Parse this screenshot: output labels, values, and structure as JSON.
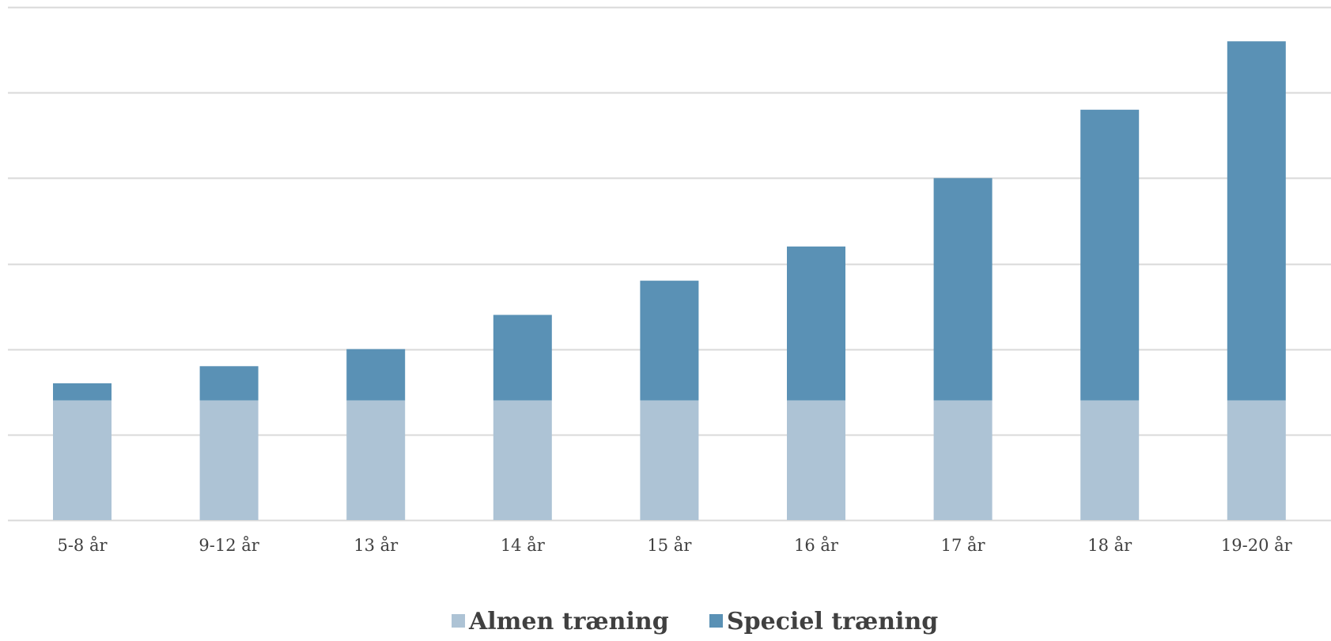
{
  "chart_data": {
    "type": "bar",
    "stacked": true,
    "categories": [
      "5-8 år",
      "9-12 år",
      "13 år",
      "14 år",
      "15 år",
      "16 år",
      "17 år",
      "18 år",
      "19-20 år"
    ],
    "series": [
      {
        "name": "Almen træning",
        "color": "#adc3d5",
        "values": [
          35,
          35,
          35,
          35,
          35,
          35,
          35,
          35,
          35
        ]
      },
      {
        "name": "Speciel træning",
        "color": "#5a91b5",
        "values": [
          5,
          10,
          15,
          25,
          35,
          45,
          65,
          85,
          105
        ]
      }
    ],
    "ylim": [
      0,
      150
    ],
    "y_gridline_step": 25,
    "y_tick_labels_shown": false,
    "grid": true,
    "legend_position": "bottom"
  }
}
